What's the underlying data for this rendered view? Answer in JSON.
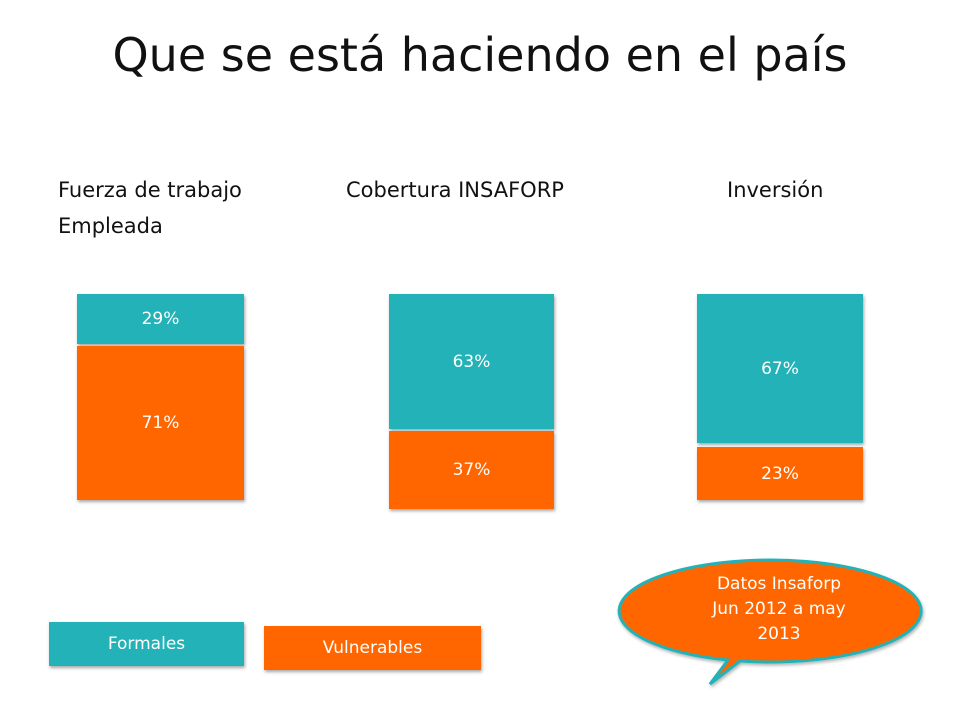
{
  "title": "Que se está haciendo en el país",
  "colors": {
    "formales": "#22b2b7",
    "vulnerables": "#ff6600"
  },
  "legend": {
    "formales": "Formales",
    "vulnerables": "Vulnerables"
  },
  "callout": {
    "lines": [
      "Datos Insaforp",
      "Jun 2012 a may",
      "2013"
    ]
  },
  "chart_data": [
    {
      "type": "bar",
      "title_lines": [
        "Fuerza de trabajo",
        "Empleada"
      ],
      "categories": [
        "Formales",
        "Vulnerables"
      ],
      "values": [
        29,
        71
      ],
      "labels": [
        "29%",
        "71%"
      ],
      "unit": "%"
    },
    {
      "type": "bar",
      "title_lines": [
        "Cobertura INSAFORP"
      ],
      "categories": [
        "Formales",
        "Vulnerables"
      ],
      "values": [
        63,
        37
      ],
      "labels": [
        "63%",
        "37%"
      ],
      "unit": "%"
    },
    {
      "type": "bar",
      "title_lines": [
        "Inversión"
      ],
      "categories": [
        "Formales",
        "Vulnerables"
      ],
      "values": [
        67,
        23
      ],
      "labels": [
        "67%",
        "23%"
      ],
      "unit": "%"
    }
  ]
}
